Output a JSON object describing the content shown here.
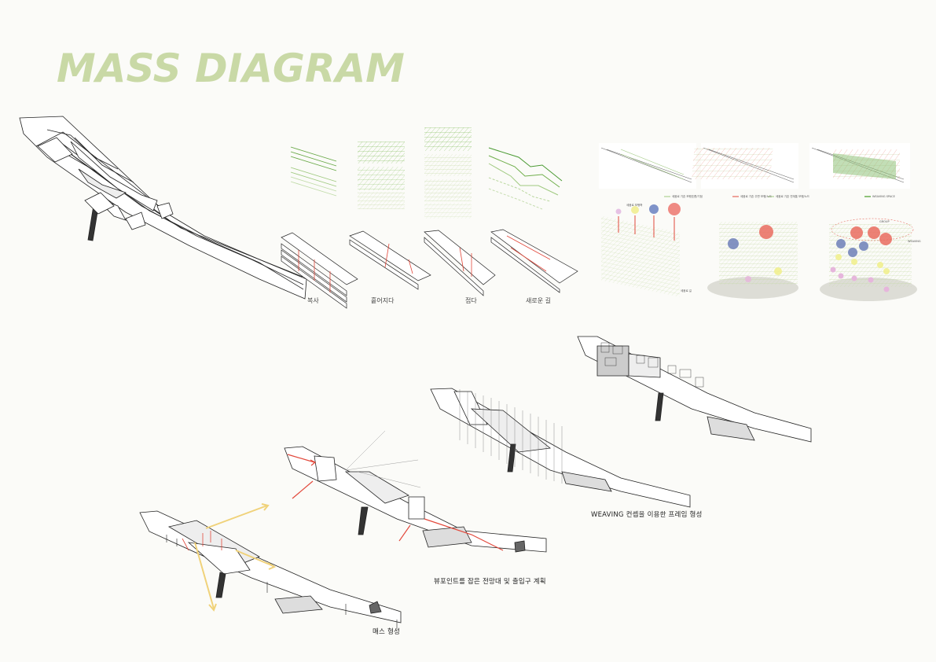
{
  "title": "MASS DIAGRAM",
  "process_steps": [
    "복사",
    "흩어지다",
    "접다",
    "새로운 길"
  ],
  "weaving_panels": {
    "legend1": "세움로 기존 보행흐름/기점",
    "legend2a": "세움로 기존 주변 보행/노드",
    "legend2b": "세움로 기존 연계통 보행/노드",
    "legend3": "WEAVING SPACE",
    "panel4_top": "세움로 보행축",
    "panel4_bottom": "세움로 길",
    "panel6_group": "GROUP",
    "panel6_weaving": "WEAVING"
  },
  "captions": {
    "stage1": "매스 형성",
    "stage2": "뷰포인트를 잡은 전망대 및 출입구 계획",
    "stage3": "WEAVING 컨셉을 이용한 프레임 형성"
  },
  "colors": {
    "title": "#c9d9a6",
    "green": "#6fae4a",
    "red": "#e2483b",
    "yellow": "#f0d27a",
    "blue": "#6d7fb8"
  }
}
